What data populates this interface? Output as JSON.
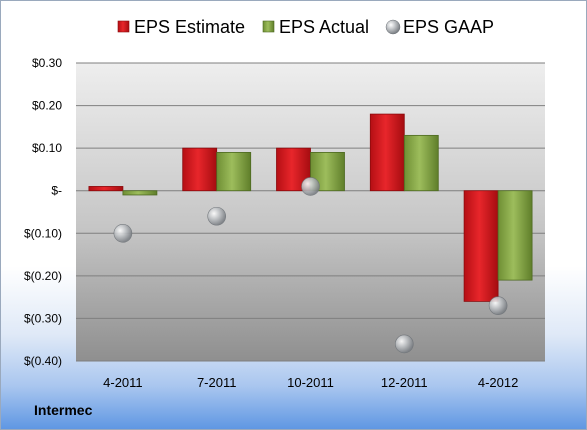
{
  "company": "Intermec",
  "chart_data": {
    "type": "bar",
    "categories": [
      "4-2011",
      "7-2011",
      "10-2011",
      "12-2011",
      "4-2012"
    ],
    "series": [
      {
        "name": "EPS Estimate",
        "type": "bar",
        "color": "#e0262a",
        "values": [
          0.01,
          0.1,
          0.1,
          0.18,
          -0.26
        ]
      },
      {
        "name": "EPS Actual",
        "type": "bar",
        "color": "#86a94a",
        "values": [
          -0.01,
          0.09,
          0.09,
          0.13,
          -0.21
        ]
      },
      {
        "name": "EPS GAAP",
        "type": "scatter",
        "color": "#a8acb0",
        "values": [
          -0.1,
          -0.06,
          0.01,
          -0.36,
          -0.27
        ]
      }
    ],
    "ylim": [
      -0.4,
      0.3
    ],
    "yticks": [
      {
        "value": 0.3,
        "label": "$0.30"
      },
      {
        "value": 0.2,
        "label": "$0.20"
      },
      {
        "value": 0.1,
        "label": "$0.10"
      },
      {
        "value": 0.0,
        "label": "$-"
      },
      {
        "value": -0.1,
        "label": "$(0.10)"
      },
      {
        "value": -0.2,
        "label": "$(0.20)"
      },
      {
        "value": -0.3,
        "label": "$(0.30)"
      },
      {
        "value": -0.4,
        "label": "$(0.40)"
      }
    ],
    "legend_position": "top",
    "grid": true
  }
}
